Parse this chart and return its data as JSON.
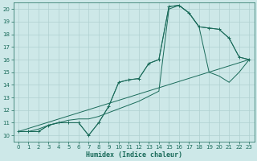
{
  "xlabel": "Humidex (Indice chaleur)",
  "ylabel": "",
  "xlim": [
    -0.5,
    23.5
  ],
  "ylim": [
    9.5,
    20.5
  ],
  "xtick_vals": [
    0,
    1,
    2,
    3,
    4,
    5,
    6,
    7,
    8,
    9,
    10,
    11,
    12,
    13,
    14,
    15,
    16,
    17,
    18,
    19,
    20,
    21,
    22,
    23
  ],
  "ytick_vals": [
    10,
    11,
    12,
    13,
    14,
    15,
    16,
    17,
    18,
    19,
    20
  ],
  "bg_color": "#cde8e8",
  "line_color": "#1a6b5a",
  "grid_color": "#afd0d0",
  "line1_x": [
    0,
    1,
    2,
    3,
    4,
    5,
    6,
    7,
    8,
    9,
    10,
    11,
    12,
    13,
    14,
    15,
    16,
    17,
    18,
    19,
    20,
    21,
    22,
    23
  ],
  "line1_y": [
    10.3,
    10.3,
    10.3,
    10.8,
    11.0,
    11.0,
    11.0,
    10.0,
    11.0,
    12.3,
    14.2,
    14.4,
    14.5,
    15.7,
    16.0,
    20.2,
    20.3,
    19.7,
    18.6,
    18.5,
    18.4,
    17.7,
    16.2,
    16.0
  ],
  "line2_x": [
    0,
    1,
    2,
    3,
    4,
    5,
    6,
    7,
    8,
    9,
    10,
    11,
    12,
    13,
    14,
    15,
    16,
    17,
    18,
    19,
    20,
    21,
    22,
    23
  ],
  "line2_y": [
    10.3,
    10.3,
    10.3,
    10.8,
    11.0,
    11.0,
    11.0,
    10.0,
    11.0,
    12.3,
    14.2,
    14.4,
    14.5,
    15.7,
    16.0,
    20.2,
    20.3,
    19.7,
    18.6,
    18.5,
    18.4,
    17.7,
    16.2,
    16.0
  ],
  "line3_x": [
    0,
    1,
    2,
    3,
    4,
    5,
    6,
    7,
    8,
    9,
    10,
    11,
    12,
    13,
    14,
    15,
    16,
    17,
    18,
    19,
    20,
    21,
    22,
    23
  ],
  "line3_y": [
    10.3,
    10.3,
    10.5,
    10.8,
    11.0,
    11.2,
    11.3,
    11.3,
    11.5,
    11.8,
    12.1,
    12.4,
    12.7,
    13.1,
    13.5,
    20.0,
    20.3,
    19.7,
    18.6,
    15.0,
    14.7,
    14.2,
    15.0,
    16.0
  ],
  "line4_x": [
    0,
    23
  ],
  "line4_y": [
    10.3,
    16.0
  ]
}
